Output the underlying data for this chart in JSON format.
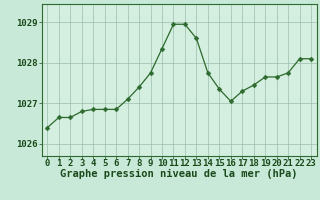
{
  "x": [
    0,
    1,
    2,
    3,
    4,
    5,
    6,
    7,
    8,
    9,
    10,
    11,
    12,
    13,
    14,
    15,
    16,
    17,
    18,
    19,
    20,
    21,
    22,
    23
  ],
  "y": [
    1026.4,
    1026.65,
    1026.65,
    1026.8,
    1026.85,
    1026.85,
    1026.85,
    1027.1,
    1027.4,
    1027.75,
    1028.35,
    1028.95,
    1028.95,
    1028.6,
    1027.75,
    1027.35,
    1027.05,
    1027.3,
    1027.45,
    1027.65,
    1027.65,
    1027.75,
    1028.1,
    1028.1
  ],
  "line_color": "#2d6a2d",
  "marker": "D",
  "marker_size": 2.5,
  "bg_color": "#c8e8d8",
  "plot_bg_color": "#d4eee0",
  "grid_color": "#9dbfad",
  "xlabel": "Graphe pression niveau de la mer (hPa)",
  "xlabel_color": "#1a4a1a",
  "xlabel_fontsize": 7.5,
  "tick_color": "#1a4a1a",
  "tick_fontsize": 6.5,
  "ytick_fontsize": 6.5,
  "yticks": [
    1026,
    1027,
    1028,
    1029
  ],
  "ylim": [
    1025.7,
    1029.45
  ],
  "xlim": [
    -0.5,
    23.5
  ],
  "xticks": [
    0,
    1,
    2,
    3,
    4,
    5,
    6,
    7,
    8,
    9,
    10,
    11,
    12,
    13,
    14,
    15,
    16,
    17,
    18,
    19,
    20,
    21,
    22,
    23
  ]
}
